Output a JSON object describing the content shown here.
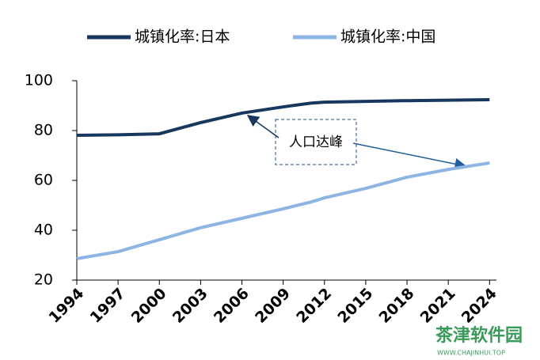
{
  "chart_data": {
    "type": "line",
    "x": [
      1994,
      1997,
      2000,
      2003,
      2006,
      2009,
      2011,
      2012,
      2015,
      2018,
      2021,
      2024
    ],
    "series": [
      {
        "name": "城镇化率:日本",
        "color": "#17375e",
        "values": [
          78.1,
          78.3,
          78.7,
          83.2,
          87,
          89.5,
          91,
          91.4,
          91.7,
          92,
          92.2,
          92.4
        ]
      },
      {
        "name": "城镇化率:中国",
        "color": "#8db4e2",
        "values": [
          28.6,
          31.4,
          36.2,
          41,
          44.8,
          48.6,
          51.3,
          53,
          56.8,
          61.3,
          64.4,
          67
        ]
      }
    ],
    "xlim": [
      1994,
      2024.5
    ],
    "xticks": [
      1994,
      1997,
      2000,
      2003,
      2006,
      2009,
      2012,
      2015,
      2018,
      2021,
      2024
    ],
    "ylim": [
      20,
      100
    ],
    "yticks": [
      20,
      40,
      60,
      80,
      100
    ],
    "grid": false,
    "legend": "top",
    "annotation": "人口达峰",
    "watermark": "茶津软件园",
    "watermark_url": "WWW.CHAJINHUI.TOP"
  }
}
